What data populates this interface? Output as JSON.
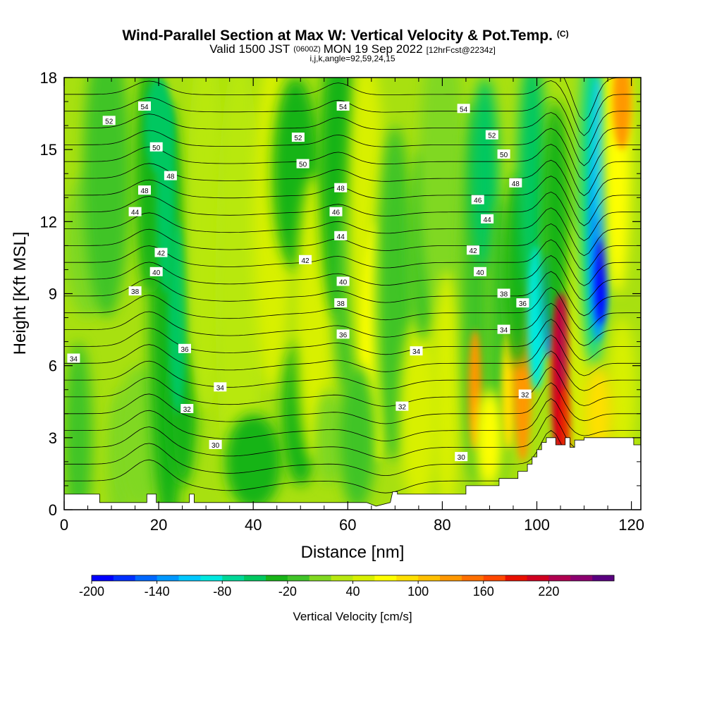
{
  "chart_data": {
    "type": "heatmap",
    "title": "Wind-Parallel Section at Max W: Vertical Velocity & Pot.Temp.",
    "title_mark": "(C)",
    "subtitle": {
      "part1": "Valid 1500 JST",
      "part2": "(0600Z)",
      "part3": "MON 19 Sep 2022",
      "part4": "[12hrFcst@2234z]"
    },
    "subtitle2": "i,j,k,angle=92,59,24,15",
    "xlabel": "Distance [nm]",
    "ylabel": "Height [Kft MSL]",
    "xlim": [
      0,
      122
    ],
    "ylim": [
      0,
      18
    ],
    "x_ticks": [
      0,
      20,
      40,
      60,
      80,
      100,
      120
    ],
    "x_tick_labels": [
      "0",
      "20",
      "40",
      "60",
      "80",
      "100",
      "120"
    ],
    "y_ticks": [
      0,
      3,
      6,
      9,
      12,
      15,
      18
    ],
    "y_tick_labels": [
      "0",
      "3",
      "6",
      "9",
      "12",
      "15",
      "18"
    ],
    "colorbar": {
      "label": "Vertical Velocity [cm/s]",
      "min": -200,
      "max": 240,
      "step": 20,
      "tick_values": [
        -200,
        -140,
        -80,
        -20,
        40,
        100,
        160,
        220
      ],
      "tick_labels": [
        "-200",
        "-140",
        "-80",
        "-20",
        "40",
        "100",
        "160",
        "220"
      ],
      "colors": [
        "#0000ff",
        "#0030ff",
        "#0068ff",
        "#0098ff",
        "#00c8ff",
        "#00e8e0",
        "#00d898",
        "#00c860",
        "#18b418",
        "#40c428",
        "#80d820",
        "#b8e810",
        "#d8f000",
        "#ffff00",
        "#ffe000",
        "#ffc000",
        "#ff9800",
        "#ff7000",
        "#ff4800",
        "#e81000",
        "#d00020",
        "#b00050",
        "#8c0070",
        "#5a0080"
      ]
    },
    "contour_field": "Potential Temperature",
    "contour_levels": [
      30,
      31,
      32,
      33,
      34,
      35,
      36,
      37,
      38,
      39,
      40,
      41,
      42,
      43,
      44,
      45,
      46,
      47,
      48,
      49,
      50,
      51,
      52,
      53,
      54
    ],
    "contour_labels": [
      {
        "text": "54",
        "x": 17,
        "y": 16.8
      },
      {
        "text": "52",
        "x": 9.5,
        "y": 16.2
      },
      {
        "text": "50",
        "x": 19.5,
        "y": 15.1
      },
      {
        "text": "48",
        "x": 22.5,
        "y": 13.9
      },
      {
        "text": "48",
        "x": 17,
        "y": 13.3
      },
      {
        "text": "44",
        "x": 15,
        "y": 12.4
      },
      {
        "text": "42",
        "x": 20.5,
        "y": 10.7
      },
      {
        "text": "40",
        "x": 19.5,
        "y": 9.9
      },
      {
        "text": "38",
        "x": 15,
        "y": 9.1
      },
      {
        "text": "36",
        "x": 25.5,
        "y": 6.7
      },
      {
        "text": "34",
        "x": 2,
        "y": 6.3
      },
      {
        "text": "34",
        "x": 33,
        "y": 5.1
      },
      {
        "text": "32",
        "x": 26,
        "y": 4.2
      },
      {
        "text": "30",
        "x": 32,
        "y": 2.7
      },
      {
        "text": "54",
        "x": 59,
        "y": 16.8
      },
      {
        "text": "52",
        "x": 49.5,
        "y": 15.5
      },
      {
        "text": "50",
        "x": 50.5,
        "y": 14.4
      },
      {
        "text": "48",
        "x": 58.5,
        "y": 13.4
      },
      {
        "text": "46",
        "x": 57.5,
        "y": 12.4
      },
      {
        "text": "44",
        "x": 58.5,
        "y": 11.4
      },
      {
        "text": "42",
        "x": 51,
        "y": 10.4
      },
      {
        "text": "40",
        "x": 59,
        "y": 9.5
      },
      {
        "text": "38",
        "x": 58.5,
        "y": 8.6
      },
      {
        "text": "36",
        "x": 59,
        "y": 7.3
      },
      {
        "text": "34",
        "x": 74.5,
        "y": 6.6
      },
      {
        "text": "32",
        "x": 71.5,
        "y": 4.3
      },
      {
        "text": "30",
        "x": 84,
        "y": 2.2
      },
      {
        "text": "54",
        "x": 84.5,
        "y": 16.7
      },
      {
        "text": "52",
        "x": 90.5,
        "y": 15.6
      },
      {
        "text": "50",
        "x": 93,
        "y": 14.8
      },
      {
        "text": "48",
        "x": 95.5,
        "y": 13.6
      },
      {
        "text": "46",
        "x": 87.5,
        "y": 12.9
      },
      {
        "text": "44",
        "x": 89.5,
        "y": 12.1
      },
      {
        "text": "42",
        "x": 86.5,
        "y": 10.8
      },
      {
        "text": "40",
        "x": 88,
        "y": 9.9
      },
      {
        "text": "38",
        "x": 93,
        "y": 9.0
      },
      {
        "text": "36",
        "x": 97,
        "y": 8.6
      },
      {
        "text": "34",
        "x": 93,
        "y": 7.5
      },
      {
        "text": "32",
        "x": 97.5,
        "y": 4.8
      }
    ],
    "terrain_profile": [
      [
        0,
        0.65
      ],
      [
        7.5,
        0.65
      ],
      [
        7.5,
        0.3
      ],
      [
        17.5,
        0.3
      ],
      [
        17.5,
        0.65
      ],
      [
        19.5,
        0.65
      ],
      [
        19.5,
        0.3
      ],
      [
        26.5,
        0.3
      ],
      [
        26.5,
        0.65
      ],
      [
        27.5,
        0.65
      ],
      [
        27.5,
        0.3
      ],
      [
        64,
        0.3
      ],
      [
        66,
        0.15
      ],
      [
        69,
        0.3
      ],
      [
        69.5,
        0.75
      ],
      [
        70.5,
        0.75
      ],
      [
        70.5,
        0.65
      ],
      [
        85,
        0.65
      ],
      [
        85,
        1.0
      ],
      [
        92,
        1.0
      ],
      [
        92,
        1.3
      ],
      [
        96,
        1.3
      ],
      [
        96,
        1.6
      ],
      [
        98,
        1.6
      ],
      [
        98,
        1.9
      ],
      [
        99,
        1.9
      ],
      [
        99,
        2.2
      ],
      [
        100,
        2.2
      ],
      [
        100,
        2.5
      ],
      [
        101,
        2.5
      ],
      [
        101,
        2.8
      ],
      [
        102,
        2.8
      ],
      [
        102,
        3.0
      ],
      [
        104,
        3.0
      ],
      [
        104,
        2.7
      ],
      [
        106,
        2.7
      ],
      [
        106,
        3.0
      ],
      [
        107,
        3.0
      ],
      [
        107,
        2.6
      ],
      [
        108,
        2.6
      ],
      [
        108,
        2.9
      ],
      [
        110,
        2.9
      ],
      [
        110,
        3.0
      ],
      [
        120.5,
        3.0
      ],
      [
        120.5,
        2.7
      ],
      [
        122,
        2.7
      ]
    ]
  }
}
